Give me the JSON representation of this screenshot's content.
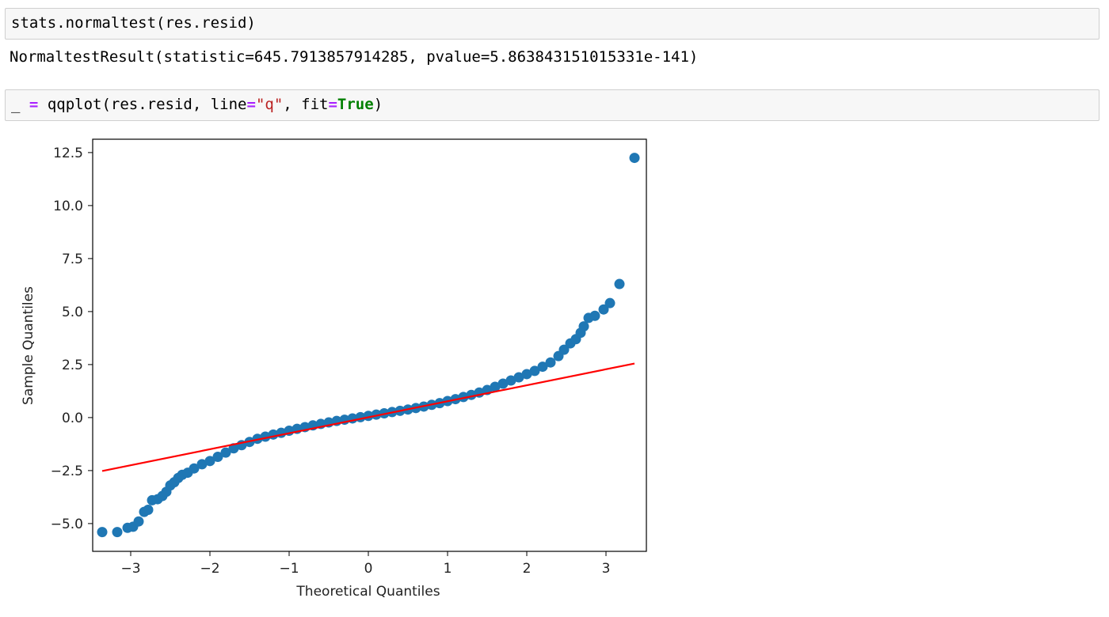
{
  "cells": [
    {
      "input": "stats.normaltest(res.resid)",
      "output": "NormaltestResult(statistic=645.7913857914285, pvalue=5.863843151015331e-141)"
    },
    {
      "tokens": [
        "_",
        "=",
        "qqplot(res.resid, line",
        "=",
        "\"q\"",
        ", fit",
        "=",
        "True",
        ")"
      ]
    }
  ],
  "chart_data": {
    "type": "scatter",
    "xlabel": "Theoretical Quantiles",
    "ylabel": "Sample Quantiles",
    "color": "#1f77b4",
    "x": [
      -3.36,
      -3.17,
      -3.04,
      -2.97,
      -2.9,
      -2.83,
      -2.78,
      -2.73,
      -2.66,
      -2.6,
      -2.55,
      -2.5,
      -2.45,
      -2.4,
      -2.35,
      -2.28,
      -2.2,
      -2.1,
      -2.0,
      -1.9,
      -1.8,
      -1.7,
      -1.6,
      -1.5,
      -1.4,
      -1.3,
      -1.2,
      -1.1,
      -1.0,
      -0.9,
      -0.8,
      -0.7,
      -0.6,
      -0.5,
      -0.4,
      -0.3,
      -0.2,
      -0.1,
      0,
      0.1,
      0.2,
      0.3,
      0.4,
      0.5,
      0.6,
      0.7,
      0.8,
      0.9,
      1.0,
      1.1,
      1.2,
      1.3,
      1.4,
      1.5,
      1.6,
      1.7,
      1.8,
      1.9,
      2.0,
      2.1,
      2.2,
      2.3,
      2.4,
      2.47,
      2.55,
      2.62,
      2.68,
      2.72,
      2.78,
      2.86,
      2.97,
      3.05,
      3.17,
      3.36
    ],
    "y": [
      -5.4,
      -5.4,
      -5.2,
      -5.15,
      -4.9,
      -4.45,
      -4.35,
      -3.9,
      -3.85,
      -3.7,
      -3.5,
      -3.2,
      -3.05,
      -2.85,
      -2.7,
      -2.6,
      -2.4,
      -2.2,
      -2.05,
      -1.85,
      -1.65,
      -1.45,
      -1.3,
      -1.15,
      -1.0,
      -0.9,
      -0.8,
      -0.72,
      -0.62,
      -0.53,
      -0.45,
      -0.37,
      -0.3,
      -0.23,
      -0.16,
      -0.1,
      -0.04,
      0.02,
      0.08,
      0.14,
      0.2,
      0.26,
      0.32,
      0.38,
      0.45,
      0.52,
      0.6,
      0.68,
      0.78,
      0.87,
      0.97,
      1.07,
      1.18,
      1.3,
      1.45,
      1.6,
      1.75,
      1.9,
      2.05,
      2.2,
      2.4,
      2.6,
      2.9,
      3.2,
      3.5,
      3.7,
      4.0,
      4.3,
      4.7,
      4.8,
      5.1,
      5.4,
      6.3,
      12.25
    ],
    "line": {
      "color": "red",
      "x": [
        -3.36,
        3.36
      ],
      "y": [
        -2.52,
        2.55
      ]
    },
    "xlim": [
      -3.48,
      3.51
    ],
    "ylim": [
      -6.31,
      13.13
    ],
    "xticks": [
      {
        "value": -3,
        "label": "−3"
      },
      {
        "value": -2,
        "label": "−2"
      },
      {
        "value": -1,
        "label": "−1"
      },
      0,
      1,
      2,
      3
    ],
    "yticks": [
      {
        "value": -5,
        "label": "−5.0"
      },
      {
        "value": -2.5,
        "label": "−2.5"
      },
      {
        "value": 0,
        "label": "0.0"
      },
      2.5,
      {
        "value": 5,
        "label": "5.0"
      },
      7.5,
      {
        "value": 10,
        "label": "10.0"
      },
      12.5
    ]
  }
}
